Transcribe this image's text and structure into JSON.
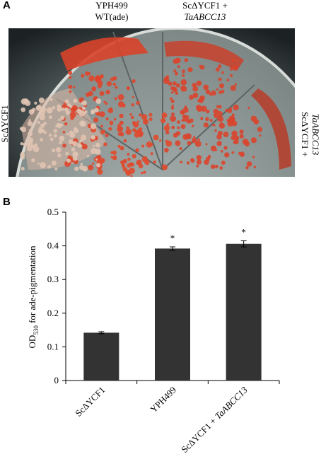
{
  "panels": {
    "a": {
      "label": "A",
      "top_left": [
        "YPH499",
        "WT(ade)"
      ],
      "top_right": [
        "ScΔYCF1 +",
        "TaABCC13"
      ],
      "left": "ScΔYCF1",
      "right": [
        "ScΔYCF1 +",
        "TaABCC13"
      ]
    },
    "b": {
      "label": "B"
    }
  },
  "chart_data": {
    "type": "bar",
    "y_label": {
      "main": "OD",
      "subscript": "530",
      "rest": " for ade-pigmentation"
    },
    "categories": [
      "ScΔYCF1",
      "YPH499",
      "ScΔYCF1 + TaABCC13"
    ],
    "italic_terms": [
      "TaABCC13"
    ],
    "values": [
      0.142,
      0.392,
      0.406
    ],
    "errors": [
      0.003,
      0.005,
      0.009
    ],
    "significance": [
      null,
      "*",
      "*"
    ],
    "color": "#333333",
    "ylim": [
      0,
      0.5
    ],
    "yticks": [
      0,
      0.1,
      0.2,
      0.3,
      0.4,
      0.5
    ],
    "grid": false
  }
}
